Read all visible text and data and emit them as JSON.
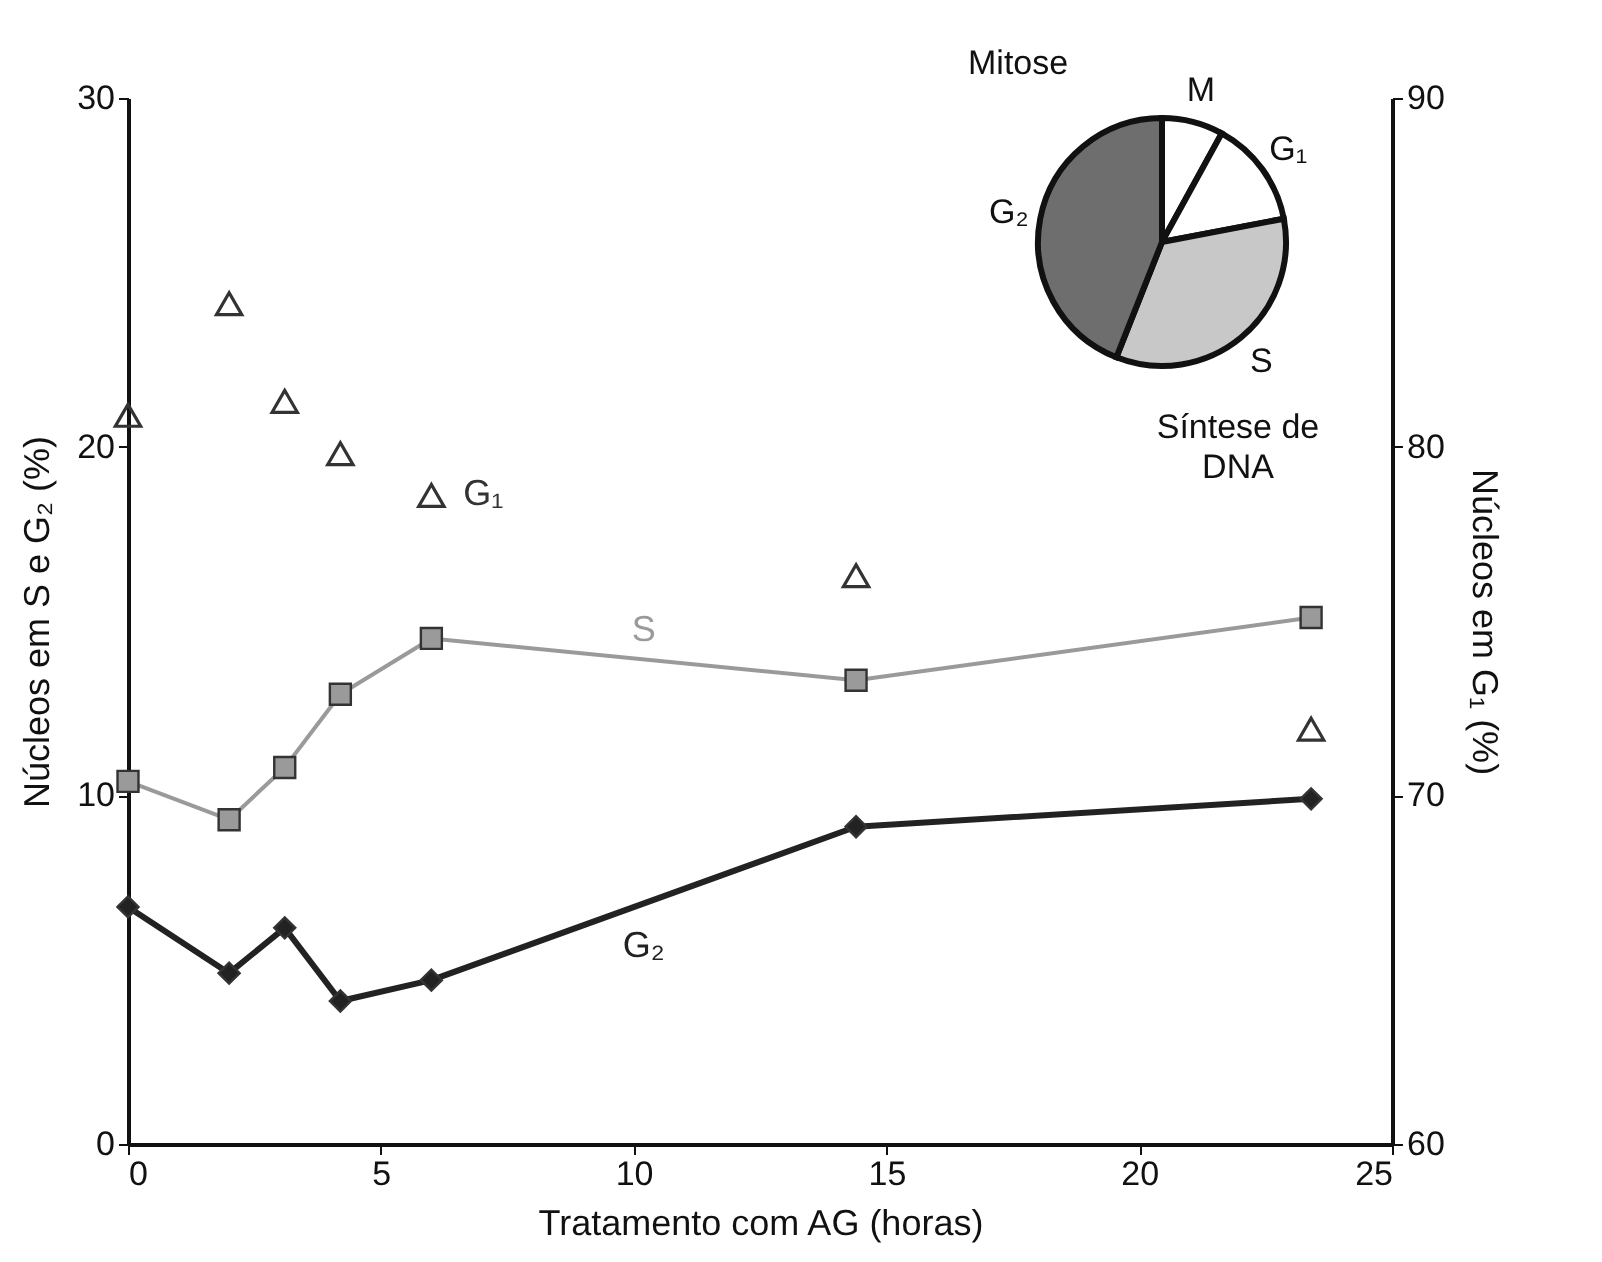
{
  "chart_data": [
    {
      "type": "line",
      "xlabel": "Tratamento com AG (horas)",
      "ylabel": "Núcleos em S e G₂ (%)",
      "y2label": "Núcleos em G₁ (%)",
      "x": [
        0,
        2.0,
        3.1,
        4.2,
        6.0,
        14.4,
        23.4
      ],
      "series": [
        {
          "name": "G₁",
          "type": "scatter",
          "axis": "y2",
          "marker": "triangle",
          "color": "#333333",
          "values": [
            80.9,
            84.1,
            81.3,
            79.8,
            78.6,
            76.3,
            71.9
          ]
        },
        {
          "name": "S",
          "type": "line",
          "marker": "square",
          "color": "#9a9a9a",
          "values": [
            10.4,
            9.3,
            10.8,
            12.9,
            14.5,
            13.3,
            15.1
          ]
        },
        {
          "name": "G₂",
          "type": "line",
          "marker": "diamond",
          "color": "#222222",
          "values": [
            6.8,
            4.9,
            6.2,
            4.1,
            4.7,
            9.1,
            9.9
          ]
        }
      ],
      "xlim": [
        0,
        25
      ],
      "xticks": [
        0,
        5,
        10,
        15,
        20,
        25
      ],
      "ylim": [
        0,
        30
      ],
      "yticks": [
        0,
        10,
        20,
        30
      ],
      "y2lim": [
        60,
        90
      ],
      "y2ticks": [
        60,
        70,
        80,
        90
      ],
      "grid": false
    },
    {
      "type": "pie",
      "categories": [
        "M",
        "G₁",
        "S",
        "G₂"
      ],
      "values": [
        8,
        14,
        34,
        44
      ],
      "colors": [
        "#ffffff",
        "#ffffff",
        "#c8c8c8",
        "#6e6e6e"
      ],
      "annotations": [
        "Mitose",
        "Síntese de DNA"
      ],
      "legend": false
    }
  ]
}
